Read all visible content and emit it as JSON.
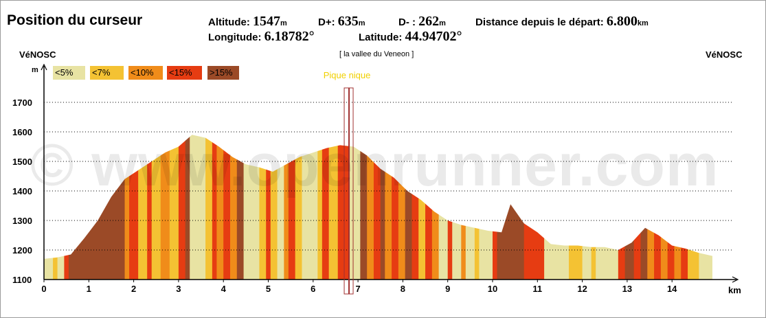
{
  "header": {
    "title": "Position du curseur",
    "altitude_label": "Altitude: ",
    "altitude_value": "1547",
    "altitude_unit": "m",
    "dplus_label": "D+: ",
    "dplus_value": "635",
    "dplus_unit": "m",
    "dminus_label": "D- : ",
    "dminus_value": "262",
    "dminus_unit": "m",
    "distance_label": "Distance depuis le départ: ",
    "distance_value": "6.800",
    "distance_unit": "km",
    "longitude_label": "Longitude: ",
    "longitude_value": "6.18782°",
    "latitude_label": "Latitude: ",
    "latitude_value": "44.94702°"
  },
  "places": {
    "start": "VéNOSC",
    "middle": "[ la vallee du Veneon ]",
    "end": "VéNOSC"
  },
  "watermark": "© www.openrunner.com",
  "legend": [
    {
      "label": "<5%",
      "color": "#e8e3a3"
    },
    {
      "label": "<7%",
      "color": "#f4c233"
    },
    {
      "label": "<10%",
      "color": "#f08c1a"
    },
    {
      "label": "<15%",
      "color": "#e63c12"
    },
    {
      "label": ">15%",
      "color": "#9b4a27"
    }
  ],
  "chart_data": {
    "type": "area",
    "title": "",
    "xlabel": "km",
    "ylabel": "m",
    "xlim": [
      0,
      15
    ],
    "ylim": [
      1100,
      1800
    ],
    "y_ticks": [
      1100,
      1200,
      1300,
      1400,
      1500,
      1600,
      1700
    ],
    "x_ticks": [
      0,
      1,
      2,
      3,
      4,
      5,
      6,
      7,
      8,
      9,
      10,
      11,
      12,
      13,
      14
    ],
    "grid": true,
    "cursor": {
      "km": 6.8,
      "label": "Pique nique",
      "color": "#a03030"
    },
    "profile": [
      {
        "x": 0.0,
        "y": 1170
      },
      {
        "x": 0.3,
        "y": 1175
      },
      {
        "x": 0.6,
        "y": 1185
      },
      {
        "x": 0.9,
        "y": 1240
      },
      {
        "x": 1.2,
        "y": 1300
      },
      {
        "x": 1.5,
        "y": 1380
      },
      {
        "x": 1.8,
        "y": 1440
      },
      {
        "x": 2.1,
        "y": 1470
      },
      {
        "x": 2.4,
        "y": 1500
      },
      {
        "x": 2.7,
        "y": 1530
      },
      {
        "x": 3.0,
        "y": 1550
      },
      {
        "x": 3.3,
        "y": 1590
      },
      {
        "x": 3.6,
        "y": 1580
      },
      {
        "x": 3.9,
        "y": 1550
      },
      {
        "x": 4.2,
        "y": 1515
      },
      {
        "x": 4.5,
        "y": 1490
      },
      {
        "x": 4.8,
        "y": 1480
      },
      {
        "x": 5.1,
        "y": 1465
      },
      {
        "x": 5.4,
        "y": 1490
      },
      {
        "x": 5.7,
        "y": 1515
      },
      {
        "x": 6.0,
        "y": 1530
      },
      {
        "x": 6.3,
        "y": 1545
      },
      {
        "x": 6.6,
        "y": 1555
      },
      {
        "x": 6.9,
        "y": 1550
      },
      {
        "x": 7.2,
        "y": 1520
      },
      {
        "x": 7.5,
        "y": 1475
      },
      {
        "x": 7.8,
        "y": 1445
      },
      {
        "x": 8.1,
        "y": 1400
      },
      {
        "x": 8.4,
        "y": 1370
      },
      {
        "x": 8.7,
        "y": 1330
      },
      {
        "x": 9.0,
        "y": 1300
      },
      {
        "x": 9.3,
        "y": 1285
      },
      {
        "x": 9.6,
        "y": 1275
      },
      {
        "x": 9.9,
        "y": 1265
      },
      {
        "x": 10.2,
        "y": 1260
      },
      {
        "x": 10.4,
        "y": 1355
      },
      {
        "x": 10.7,
        "y": 1290
      },
      {
        "x": 11.0,
        "y": 1260
      },
      {
        "x": 11.3,
        "y": 1220
      },
      {
        "x": 11.6,
        "y": 1215
      },
      {
        "x": 11.9,
        "y": 1215
      },
      {
        "x": 12.2,
        "y": 1210
      },
      {
        "x": 12.5,
        "y": 1210
      },
      {
        "x": 12.8,
        "y": 1200
      },
      {
        "x": 13.1,
        "y": 1225
      },
      {
        "x": 13.4,
        "y": 1275
      },
      {
        "x": 13.7,
        "y": 1250
      },
      {
        "x": 14.0,
        "y": 1215
      },
      {
        "x": 14.3,
        "y": 1205
      },
      {
        "x": 14.6,
        "y": 1190
      },
      {
        "x": 14.9,
        "y": 1180
      }
    ],
    "segments": [
      {
        "x0": 0.0,
        "x1": 0.2,
        "color": "#e8e3a3"
      },
      {
        "x0": 0.2,
        "x1": 0.3,
        "color": "#f4c233"
      },
      {
        "x0": 0.3,
        "x1": 0.45,
        "color": "#e8e3a3"
      },
      {
        "x0": 0.45,
        "x1": 0.55,
        "color": "#e63c12"
      },
      {
        "x0": 0.55,
        "x1": 1.8,
        "color": "#9b4a27"
      },
      {
        "x0": 1.8,
        "x1": 1.9,
        "color": "#f08c1a"
      },
      {
        "x0": 1.9,
        "x1": 2.1,
        "color": "#e63c12"
      },
      {
        "x0": 2.1,
        "x1": 2.3,
        "color": "#f4c233"
      },
      {
        "x0": 2.3,
        "x1": 2.4,
        "color": "#e63c12"
      },
      {
        "x0": 2.4,
        "x1": 2.6,
        "color": "#f4c233"
      },
      {
        "x0": 2.6,
        "x1": 2.8,
        "color": "#f08c1a"
      },
      {
        "x0": 2.8,
        "x1": 3.0,
        "color": "#f4c233"
      },
      {
        "x0": 3.0,
        "x1": 3.15,
        "color": "#e63c12"
      },
      {
        "x0": 3.15,
        "x1": 3.25,
        "color": "#9b4a27"
      },
      {
        "x0": 3.25,
        "x1": 3.6,
        "color": "#e8e3a3"
      },
      {
        "x0": 3.6,
        "x1": 3.75,
        "color": "#f4c233"
      },
      {
        "x0": 3.75,
        "x1": 3.85,
        "color": "#e63c12"
      },
      {
        "x0": 3.85,
        "x1": 4.0,
        "color": "#f08c1a"
      },
      {
        "x0": 4.0,
        "x1": 4.15,
        "color": "#e63c12"
      },
      {
        "x0": 4.15,
        "x1": 4.3,
        "color": "#f08c1a"
      },
      {
        "x0": 4.3,
        "x1": 4.45,
        "color": "#9b4a27"
      },
      {
        "x0": 4.45,
        "x1": 4.8,
        "color": "#e8e3a3"
      },
      {
        "x0": 4.8,
        "x1": 4.95,
        "color": "#f4c233"
      },
      {
        "x0": 4.95,
        "x1": 5.05,
        "color": "#e63c12"
      },
      {
        "x0": 5.05,
        "x1": 5.2,
        "color": "#f4c233"
      },
      {
        "x0": 5.2,
        "x1": 5.35,
        "color": "#e8e3a3"
      },
      {
        "x0": 5.35,
        "x1": 5.45,
        "color": "#f08c1a"
      },
      {
        "x0": 5.45,
        "x1": 5.6,
        "color": "#e63c12"
      },
      {
        "x0": 5.6,
        "x1": 5.75,
        "color": "#f4c233"
      },
      {
        "x0": 5.75,
        "x1": 6.1,
        "color": "#e8e3a3"
      },
      {
        "x0": 6.1,
        "x1": 6.2,
        "color": "#f4c233"
      },
      {
        "x0": 6.2,
        "x1": 6.35,
        "color": "#e63c12"
      },
      {
        "x0": 6.35,
        "x1": 6.55,
        "color": "#f4c233"
      },
      {
        "x0": 6.55,
        "x1": 6.8,
        "color": "#e63c12"
      },
      {
        "x0": 6.8,
        "x1": 7.05,
        "color": "#e8e3a3"
      },
      {
        "x0": 7.05,
        "x1": 7.2,
        "color": "#9b4a27"
      },
      {
        "x0": 7.2,
        "x1": 7.35,
        "color": "#f08c1a"
      },
      {
        "x0": 7.35,
        "x1": 7.5,
        "color": "#e63c12"
      },
      {
        "x0": 7.5,
        "x1": 7.6,
        "color": "#9b4a27"
      },
      {
        "x0": 7.6,
        "x1": 7.75,
        "color": "#f08c1a"
      },
      {
        "x0": 7.75,
        "x1": 7.9,
        "color": "#e63c12"
      },
      {
        "x0": 7.9,
        "x1": 8.05,
        "color": "#f08c1a"
      },
      {
        "x0": 8.05,
        "x1": 8.2,
        "color": "#9b4a27"
      },
      {
        "x0": 8.2,
        "x1": 8.35,
        "color": "#e63c12"
      },
      {
        "x0": 8.35,
        "x1": 8.5,
        "color": "#f4c233"
      },
      {
        "x0": 8.5,
        "x1": 8.65,
        "color": "#e63c12"
      },
      {
        "x0": 8.65,
        "x1": 8.8,
        "color": "#f08c1a"
      },
      {
        "x0": 8.8,
        "x1": 9.0,
        "color": "#e8e3a3"
      },
      {
        "x0": 9.0,
        "x1": 9.1,
        "color": "#e63c12"
      },
      {
        "x0": 9.1,
        "x1": 9.3,
        "color": "#e8e3a3"
      },
      {
        "x0": 9.3,
        "x1": 9.4,
        "color": "#f08c1a"
      },
      {
        "x0": 9.4,
        "x1": 9.6,
        "color": "#e8e3a3"
      },
      {
        "x0": 9.6,
        "x1": 9.7,
        "color": "#f4c233"
      },
      {
        "x0": 9.7,
        "x1": 10.0,
        "color": "#e8e3a3"
      },
      {
        "x0": 10.0,
        "x1": 10.1,
        "color": "#e63c12"
      },
      {
        "x0": 10.1,
        "x1": 10.7,
        "color": "#9b4a27"
      },
      {
        "x0": 10.7,
        "x1": 10.85,
        "color": "#e63c12"
      },
      {
        "x0": 10.85,
        "x1": 11.15,
        "color": "#e63c12"
      },
      {
        "x0": 11.15,
        "x1": 11.7,
        "color": "#e8e3a3"
      },
      {
        "x0": 11.7,
        "x1": 12.0,
        "color": "#f4c233"
      },
      {
        "x0": 12.0,
        "x1": 12.2,
        "color": "#e8e3a3"
      },
      {
        "x0": 12.2,
        "x1": 12.3,
        "color": "#f4c233"
      },
      {
        "x0": 12.3,
        "x1": 12.8,
        "color": "#e8e3a3"
      },
      {
        "x0": 12.8,
        "x1": 12.95,
        "color": "#e63c12"
      },
      {
        "x0": 12.95,
        "x1": 13.15,
        "color": "#9b4a27"
      },
      {
        "x0": 13.15,
        "x1": 13.3,
        "color": "#e63c12"
      },
      {
        "x0": 13.3,
        "x1": 13.45,
        "color": "#9b4a27"
      },
      {
        "x0": 13.45,
        "x1": 13.6,
        "color": "#f08c1a"
      },
      {
        "x0": 13.6,
        "x1": 13.75,
        "color": "#e63c12"
      },
      {
        "x0": 13.75,
        "x1": 13.9,
        "color": "#f08c1a"
      },
      {
        "x0": 13.9,
        "x1": 14.05,
        "color": "#e63c12"
      },
      {
        "x0": 14.05,
        "x1": 14.2,
        "color": "#f08c1a"
      },
      {
        "x0": 14.2,
        "x1": 14.35,
        "color": "#e63c12"
      },
      {
        "x0": 14.35,
        "x1": 14.6,
        "color": "#f4c233"
      },
      {
        "x0": 14.6,
        "x1": 14.9,
        "color": "#e8e3a3"
      }
    ]
  }
}
